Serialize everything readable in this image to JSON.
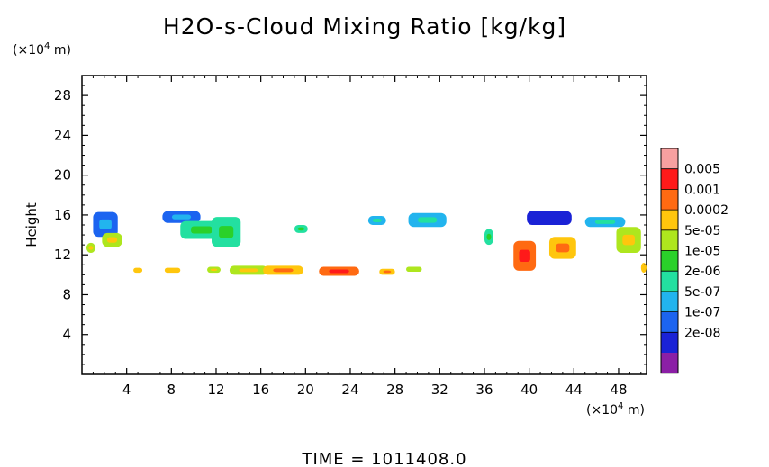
{
  "chart_data": {
    "type": "heatmap",
    "title": "H2O-s-Cloud Mixing Ratio [kg/kg]",
    "ylabel": "Height",
    "xunit_prefix": "(×10",
    "xunit_exp": "4",
    "xunit_suffix": " m)",
    "yunit_prefix": "(×10",
    "yunit_exp": "4",
    "yunit_suffix": " m)",
    "time_label": "TIME = 1011408.0",
    "xlim": [
      0,
      50.5
    ],
    "ylim": [
      0,
      30
    ],
    "xticks": [
      4,
      8,
      12,
      16,
      20,
      24,
      28,
      32,
      36,
      40,
      44,
      48
    ],
    "yticks": [
      4,
      8,
      12,
      16,
      20,
      24,
      28
    ],
    "colorbar": {
      "levels": [
        "2e-08",
        "1e-07",
        "5e-07",
        "2e-06",
        "1e-05",
        "5e-05",
        "0.0002",
        "0.001",
        "0.005"
      ],
      "colors": [
        "#8b1fa6",
        "#1a22d6",
        "#1c64f0",
        "#22b4ee",
        "#23e0a0",
        "#2ad12a",
        "#aee61e",
        "#ffc60d",
        "#ff6a12",
        "#ff1a1a",
        "#f7a0a0"
      ]
    },
    "features": [
      {
        "x": [
          1.0,
          3.2
        ],
        "y": [
          13.8,
          16.3
        ],
        "level": 1
      },
      {
        "x": [
          1.8,
          3.6
        ],
        "y": [
          12.8,
          14.2
        ],
        "level": 5
      },
      {
        "x": [
          0.4,
          1.2
        ],
        "y": [
          12.2,
          13.2
        ],
        "level": 5
      },
      {
        "x": [
          7.2,
          10.6
        ],
        "y": [
          15.2,
          16.4
        ],
        "level": 1
      },
      {
        "x": [
          8.8,
          12.6
        ],
        "y": [
          13.6,
          15.4
        ],
        "level": 3
      },
      {
        "x": [
          11.6,
          14.2
        ],
        "y": [
          12.8,
          15.8
        ],
        "level": 3
      },
      {
        "x": [
          19.0,
          20.2
        ],
        "y": [
          14.2,
          15.0
        ],
        "level": 3
      },
      {
        "x": [
          25.6,
          27.2
        ],
        "y": [
          15.0,
          15.9
        ],
        "level": 2
      },
      {
        "x": [
          29.2,
          32.6
        ],
        "y": [
          14.8,
          16.2
        ],
        "level": 2
      },
      {
        "x": [
          36.0,
          36.8
        ],
        "y": [
          13.0,
          14.6
        ],
        "level": 3
      },
      {
        "x": [
          39.8,
          43.8
        ],
        "y": [
          15.0,
          16.4
        ],
        "level": 0
      },
      {
        "x": [
          45.0,
          48.6
        ],
        "y": [
          14.8,
          15.8
        ],
        "level": 2
      },
      {
        "x": [
          38.6,
          40.6
        ],
        "y": [
          10.4,
          13.4
        ],
        "level": 7
      },
      {
        "x": [
          41.8,
          44.2
        ],
        "y": [
          11.6,
          13.8
        ],
        "level": 6
      },
      {
        "x": [
          47.8,
          50.0
        ],
        "y": [
          12.2,
          14.8
        ],
        "level": 5
      },
      {
        "x": [
          4.6,
          5.4
        ],
        "y": [
          10.2,
          10.7
        ],
        "level": 6
      },
      {
        "x": [
          7.4,
          8.8
        ],
        "y": [
          10.2,
          10.7
        ],
        "level": 6
      },
      {
        "x": [
          11.2,
          12.4
        ],
        "y": [
          10.2,
          10.8
        ],
        "level": 5
      },
      {
        "x": [
          13.2,
          16.6
        ],
        "y": [
          10.0,
          10.9
        ],
        "level": 5
      },
      {
        "x": [
          16.2,
          19.8
        ],
        "y": [
          10.0,
          10.9
        ],
        "level": 6
      },
      {
        "x": [
          21.2,
          24.8
        ],
        "y": [
          9.9,
          10.8
        ],
        "level": 7
      },
      {
        "x": [
          26.6,
          28.0
        ],
        "y": [
          10.0,
          10.6
        ],
        "level": 6
      },
      {
        "x": [
          29.0,
          30.4
        ],
        "y": [
          10.3,
          10.8
        ],
        "level": 5
      },
      {
        "x": [
          50.0,
          50.5
        ],
        "y": [
          10.2,
          11.2
        ],
        "level": 6
      }
    ]
  }
}
